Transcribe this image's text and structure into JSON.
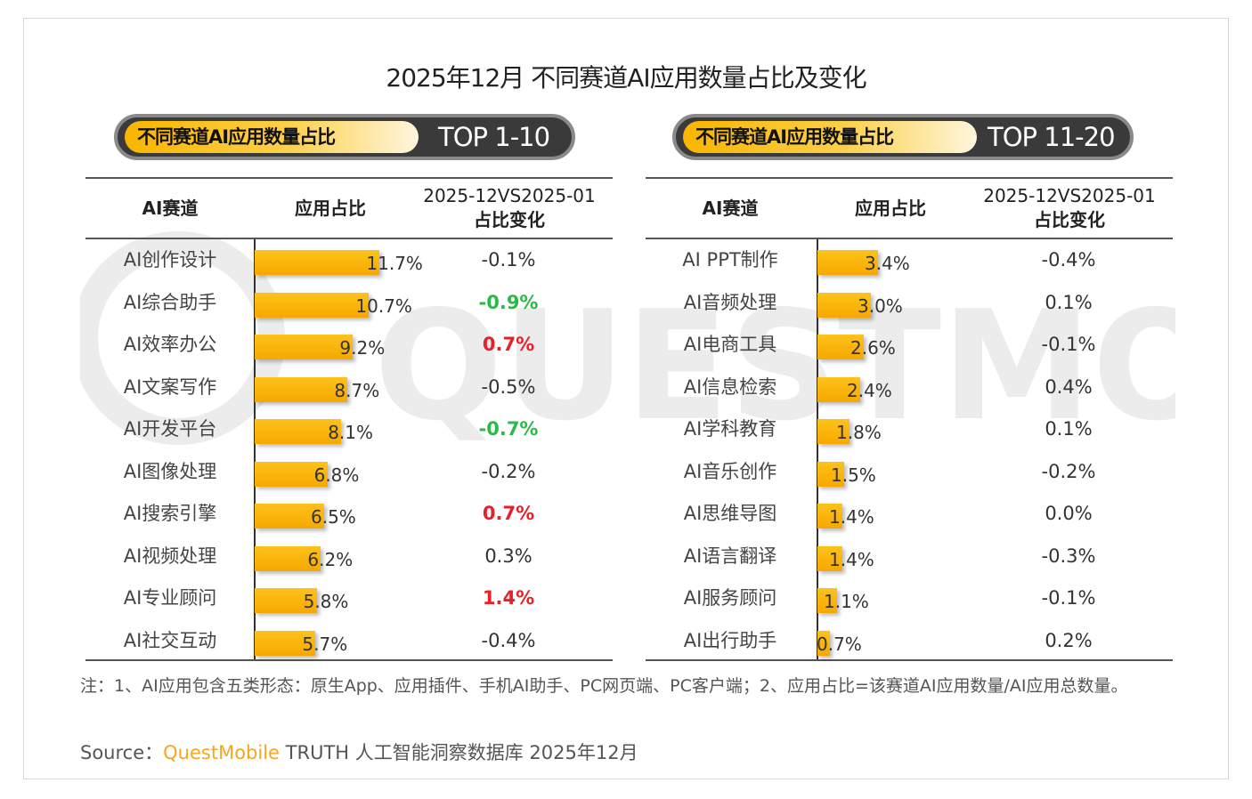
{
  "title": "2025年12月 不同赛道AI应用数量占比及变化",
  "colors": {
    "bar": "#f9b500",
    "positive_highlight": "#e8202a",
    "negative_highlight": "#2db84b",
    "pill_dark": "#3a3a3a"
  },
  "watermark": "QUESTMOBILE",
  "chart_data": [
    {
      "type": "bar",
      "panel_label": "不同赛道AI应用数量占比",
      "panel_rank": "TOP 1-10",
      "headers": {
        "track": "AI赛道",
        "share": "应用占比",
        "change_line1": "2025-12VS2025-01",
        "change_line2": "占比变化"
      },
      "rows": [
        {
          "track": "AI创作设计",
          "share": 11.7,
          "share_label": "11.7%",
          "change": "-0.1%",
          "highlight": ""
        },
        {
          "track": "AI综合助手",
          "share": 10.7,
          "share_label": "10.7%",
          "change": "-0.9%",
          "highlight": "green"
        },
        {
          "track": "AI效率办公",
          "share": 9.2,
          "share_label": "9.2%",
          "change": "0.7%",
          "highlight": "red"
        },
        {
          "track": "AI文案写作",
          "share": 8.7,
          "share_label": "8.7%",
          "change": "-0.5%",
          "highlight": ""
        },
        {
          "track": "AI开发平台",
          "share": 8.1,
          "share_label": "8.1%",
          "change": "-0.7%",
          "highlight": "green"
        },
        {
          "track": "AI图像处理",
          "share": 6.8,
          "share_label": "6.8%",
          "change": "-0.2%",
          "highlight": ""
        },
        {
          "track": "AI搜索引擎",
          "share": 6.5,
          "share_label": "6.5%",
          "change": "0.7%",
          "highlight": "red"
        },
        {
          "track": "AI视频处理",
          "share": 6.2,
          "share_label": "6.2%",
          "change": "0.3%",
          "highlight": ""
        },
        {
          "track": "AI专业顾问",
          "share": 5.8,
          "share_label": "5.8%",
          "change": "1.4%",
          "highlight": "red"
        },
        {
          "track": "AI社交互动",
          "share": 5.7,
          "share_label": "5.7%",
          "change": "-0.4%",
          "highlight": ""
        }
      ]
    },
    {
      "type": "bar",
      "panel_label": "不同赛道AI应用数量占比",
      "panel_rank": "TOP 11-20",
      "headers": {
        "track": "AI赛道",
        "share": "应用占比",
        "change_line1": "2025-12VS2025-01",
        "change_line2": "占比变化"
      },
      "rows": [
        {
          "track": "AI PPT制作",
          "share": 3.4,
          "share_label": "3.4%",
          "change": "-0.4%",
          "highlight": ""
        },
        {
          "track": "AI音频处理",
          "share": 3.0,
          "share_label": "3.0%",
          "change": "0.1%",
          "highlight": ""
        },
        {
          "track": "AI电商工具",
          "share": 2.6,
          "share_label": "2.6%",
          "change": "-0.1%",
          "highlight": ""
        },
        {
          "track": "AI信息检索",
          "share": 2.4,
          "share_label": "2.4%",
          "change": "0.4%",
          "highlight": ""
        },
        {
          "track": "AI学科教育",
          "share": 1.8,
          "share_label": "1.8%",
          "change": "0.1%",
          "highlight": ""
        },
        {
          "track": "AI音乐创作",
          "share": 1.5,
          "share_label": "1.5%",
          "change": "-0.2%",
          "highlight": ""
        },
        {
          "track": "AI思维导图",
          "share": 1.4,
          "share_label": "1.4%",
          "change": "0.0%",
          "highlight": ""
        },
        {
          "track": "AI语言翻译",
          "share": 1.4,
          "share_label": "1.4%",
          "change": "-0.3%",
          "highlight": ""
        },
        {
          "track": "AI服务顾问",
          "share": 1.1,
          "share_label": "1.1%",
          "change": "-0.1%",
          "highlight": ""
        },
        {
          "track": "AI出行助手",
          "share": 0.7,
          "share_label": "0.7%",
          "change": "0.2%",
          "highlight": ""
        }
      ]
    }
  ],
  "note": "注：1、AI应用包含五类形态：原生App、应用插件、手机AI助手、PC网页端、PC客户端；2、应用占比=该赛道AI应用数量/AI应用总数量。",
  "source": {
    "label": "Source：",
    "brand": "QuestMobile",
    "text": "TRUTH 人工智能洞察数据库 2025年12月"
  }
}
